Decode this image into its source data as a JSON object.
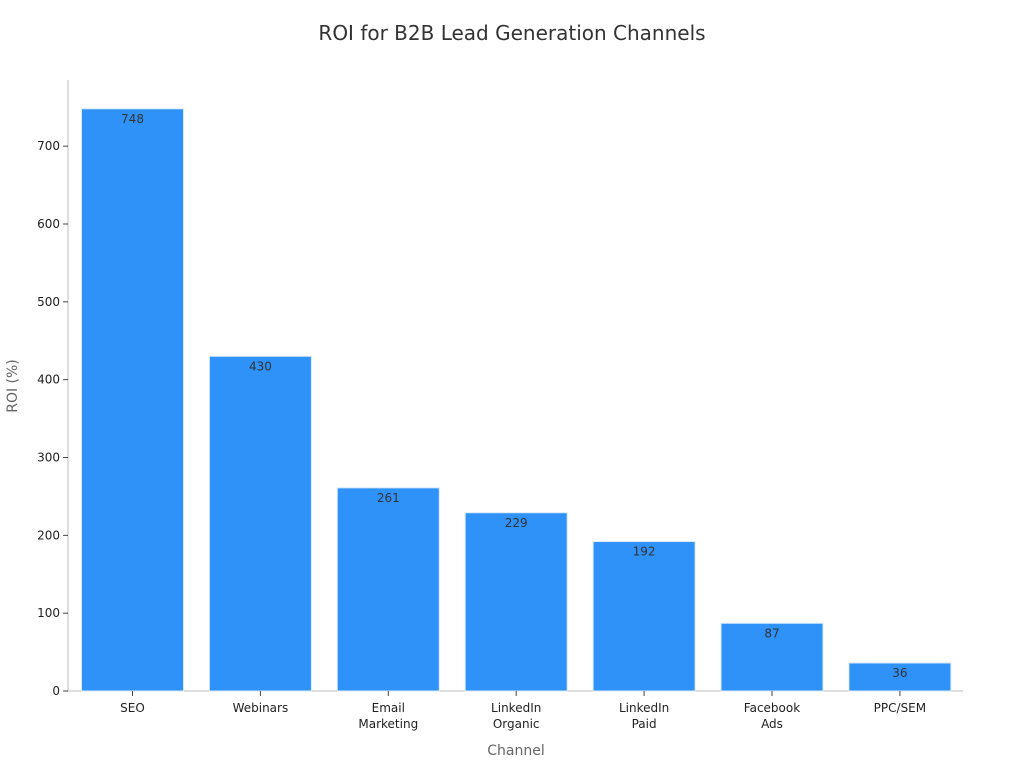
{
  "chart_data": {
    "type": "bar",
    "title": "ROI for B2B Lead Generation Channels",
    "xlabel": "Channel",
    "ylabel": "ROI (%)",
    "categories": [
      "SEO",
      "Webinars",
      "Email\nMarketing",
      "LinkedIn\nOrganic",
      "LinkedIn\nPaid",
      "Facebook\nAds",
      "PPC/SEM"
    ],
    "values": [
      748,
      430,
      261,
      229,
      192,
      87,
      36
    ],
    "data_labels": [
      "748",
      "430",
      "261",
      "229",
      "192",
      "87",
      "36"
    ],
    "ylim": [
      0,
      785
    ],
    "yticks": [
      0,
      100,
      200,
      300,
      400,
      500,
      600,
      700
    ],
    "grid": false,
    "legend": "none",
    "colors": {
      "bar": "#2f92f8",
      "bar_edge": "#d7e8fb",
      "axis": "#bdbdbd",
      "tick_text": "#222222",
      "label_text": "#666666",
      "title_text": "#333333",
      "data_label_text": "#333333"
    }
  }
}
